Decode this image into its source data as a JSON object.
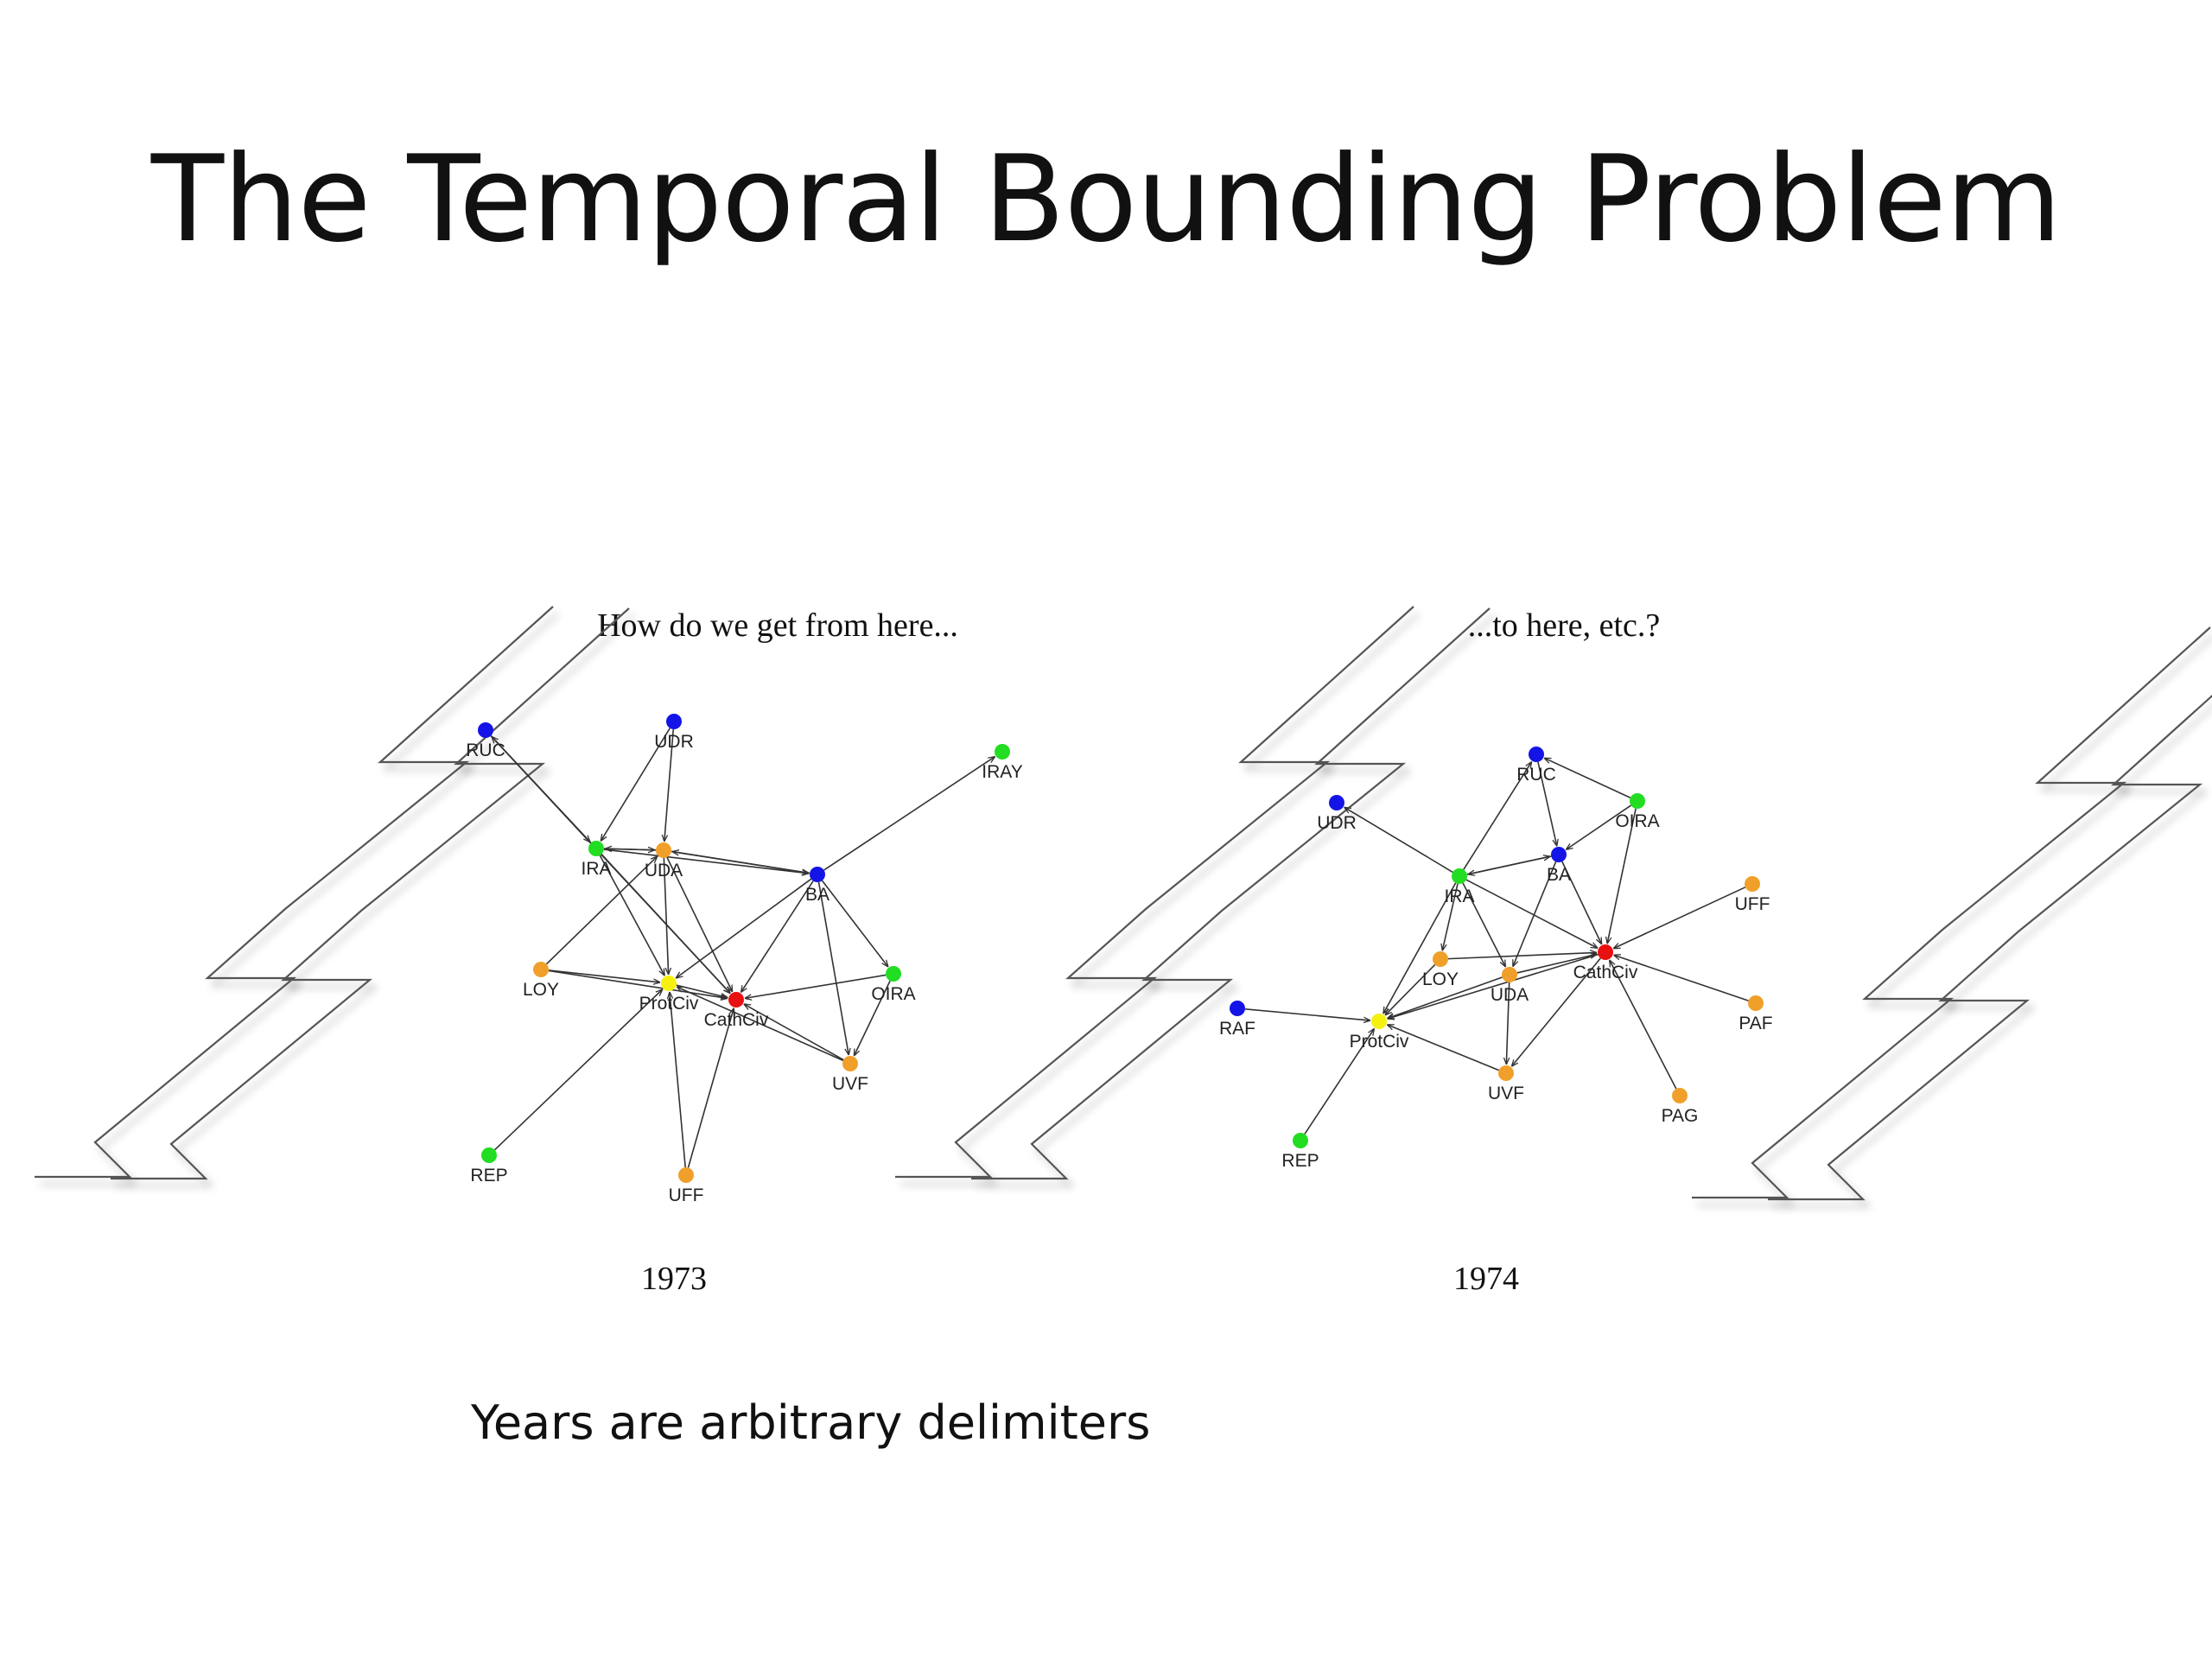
{
  "slide": {
    "title": "The Temporal Bounding Problem",
    "note": "Years are arbitrary delimiters"
  },
  "colors": {
    "blue": "#1414e6",
    "green": "#22dd22",
    "orange": "#f0a02a",
    "yellow": "#f5f010",
    "red": "#e81010",
    "edge": "#333333"
  },
  "graphs": [
    {
      "caption": "How do we get from here...",
      "year": "1973",
      "nodes": [
        {
          "id": "RUC",
          "color": "blue"
        },
        {
          "id": "UDR",
          "color": "blue"
        },
        {
          "id": "IRAY",
          "color": "green"
        },
        {
          "id": "IRA",
          "color": "green"
        },
        {
          "id": "UDA",
          "color": "orange"
        },
        {
          "id": "BA",
          "color": "blue"
        },
        {
          "id": "LOY",
          "color": "orange"
        },
        {
          "id": "ProtCiv",
          "color": "yellow"
        },
        {
          "id": "CathCiv",
          "color": "red"
        },
        {
          "id": "OIRA",
          "color": "green"
        },
        {
          "id": "UVF",
          "color": "orange"
        },
        {
          "id": "REP",
          "color": "green"
        },
        {
          "id": "UFF",
          "color": "orange"
        }
      ],
      "edges": [
        [
          "IRA",
          "RUC"
        ],
        [
          "RUC",
          "IRA"
        ],
        [
          "RUC",
          "CathCiv"
        ],
        [
          "UDR",
          "IRA"
        ],
        [
          "UDR",
          "UDA"
        ],
        [
          "UDA",
          "IRA"
        ],
        [
          "IRA",
          "UDA"
        ],
        [
          "BA",
          "IRAY"
        ],
        [
          "UDA",
          "BA"
        ],
        [
          "BA",
          "UDA"
        ],
        [
          "IRA",
          "BA"
        ],
        [
          "IRA",
          "ProtCiv"
        ],
        [
          "UDA",
          "ProtCiv"
        ],
        [
          "UDA",
          "CathCiv"
        ],
        [
          "BA",
          "ProtCiv"
        ],
        [
          "BA",
          "CathCiv"
        ],
        [
          "BA",
          "OIRA"
        ],
        [
          "BA",
          "UVF"
        ],
        [
          "OIRA",
          "UVF"
        ],
        [
          "LOY",
          "ProtCiv"
        ],
        [
          "LOY",
          "CathCiv"
        ],
        [
          "LOY",
          "UDA"
        ],
        [
          "OIRA",
          "CathCiv"
        ],
        [
          "ProtCiv",
          "CathCiv"
        ],
        [
          "UVF",
          "ProtCiv"
        ],
        [
          "UVF",
          "CathCiv"
        ],
        [
          "REP",
          "ProtCiv"
        ],
        [
          "UFF",
          "ProtCiv"
        ],
        [
          "UFF",
          "CathCiv"
        ],
        [
          "IRA",
          "CathCiv"
        ]
      ]
    },
    {
      "caption": "...to here, etc.?",
      "year": "1974",
      "nodes": [
        {
          "id": "RUC",
          "color": "blue"
        },
        {
          "id": "UDR",
          "color": "blue"
        },
        {
          "id": "OIRA",
          "color": "green"
        },
        {
          "id": "IRA",
          "color": "green"
        },
        {
          "id": "BA",
          "color": "blue"
        },
        {
          "id": "UFF",
          "color": "orange"
        },
        {
          "id": "LOY",
          "color": "orange"
        },
        {
          "id": "UDA",
          "color": "orange"
        },
        {
          "id": "CathCiv",
          "color": "red"
        },
        {
          "id": "PAF",
          "color": "orange"
        },
        {
          "id": "RAF",
          "color": "blue"
        },
        {
          "id": "ProtCiv",
          "color": "yellow"
        },
        {
          "id": "UVF",
          "color": "orange"
        },
        {
          "id": "PAG",
          "color": "orange"
        },
        {
          "id": "REP",
          "color": "green"
        }
      ],
      "edges": [
        [
          "OIRA",
          "RUC"
        ],
        [
          "IRA",
          "RUC"
        ],
        [
          "RUC",
          "BA"
        ],
        [
          "OIRA",
          "BA"
        ],
        [
          "IRA",
          "UDR"
        ],
        [
          "BA",
          "IRA"
        ],
        [
          "IRA",
          "BA"
        ],
        [
          "OIRA",
          "CathCiv"
        ],
        [
          "BA",
          "CathCiv"
        ],
        [
          "BA",
          "UDA"
        ],
        [
          "IRA",
          "CathCiv"
        ],
        [
          "IRA",
          "UDA"
        ],
        [
          "IRA",
          "LOY"
        ],
        [
          "UFF",
          "CathCiv"
        ],
        [
          "PAF",
          "CathCiv"
        ],
        [
          "PAG",
          "CathCiv"
        ],
        [
          "LOY",
          "ProtCiv"
        ],
        [
          "LOY",
          "CathCiv"
        ],
        [
          "UDA",
          "CathCiv"
        ],
        [
          "UDA",
          "UVF"
        ],
        [
          "UDA",
          "ProtCiv"
        ],
        [
          "CathCiv",
          "ProtCiv"
        ],
        [
          "CathCiv",
          "UVF"
        ],
        [
          "UVF",
          "ProtCiv"
        ],
        [
          "RAF",
          "ProtCiv"
        ],
        [
          "REP",
          "ProtCiv"
        ],
        [
          "IRA",
          "ProtCiv"
        ]
      ]
    }
  ]
}
